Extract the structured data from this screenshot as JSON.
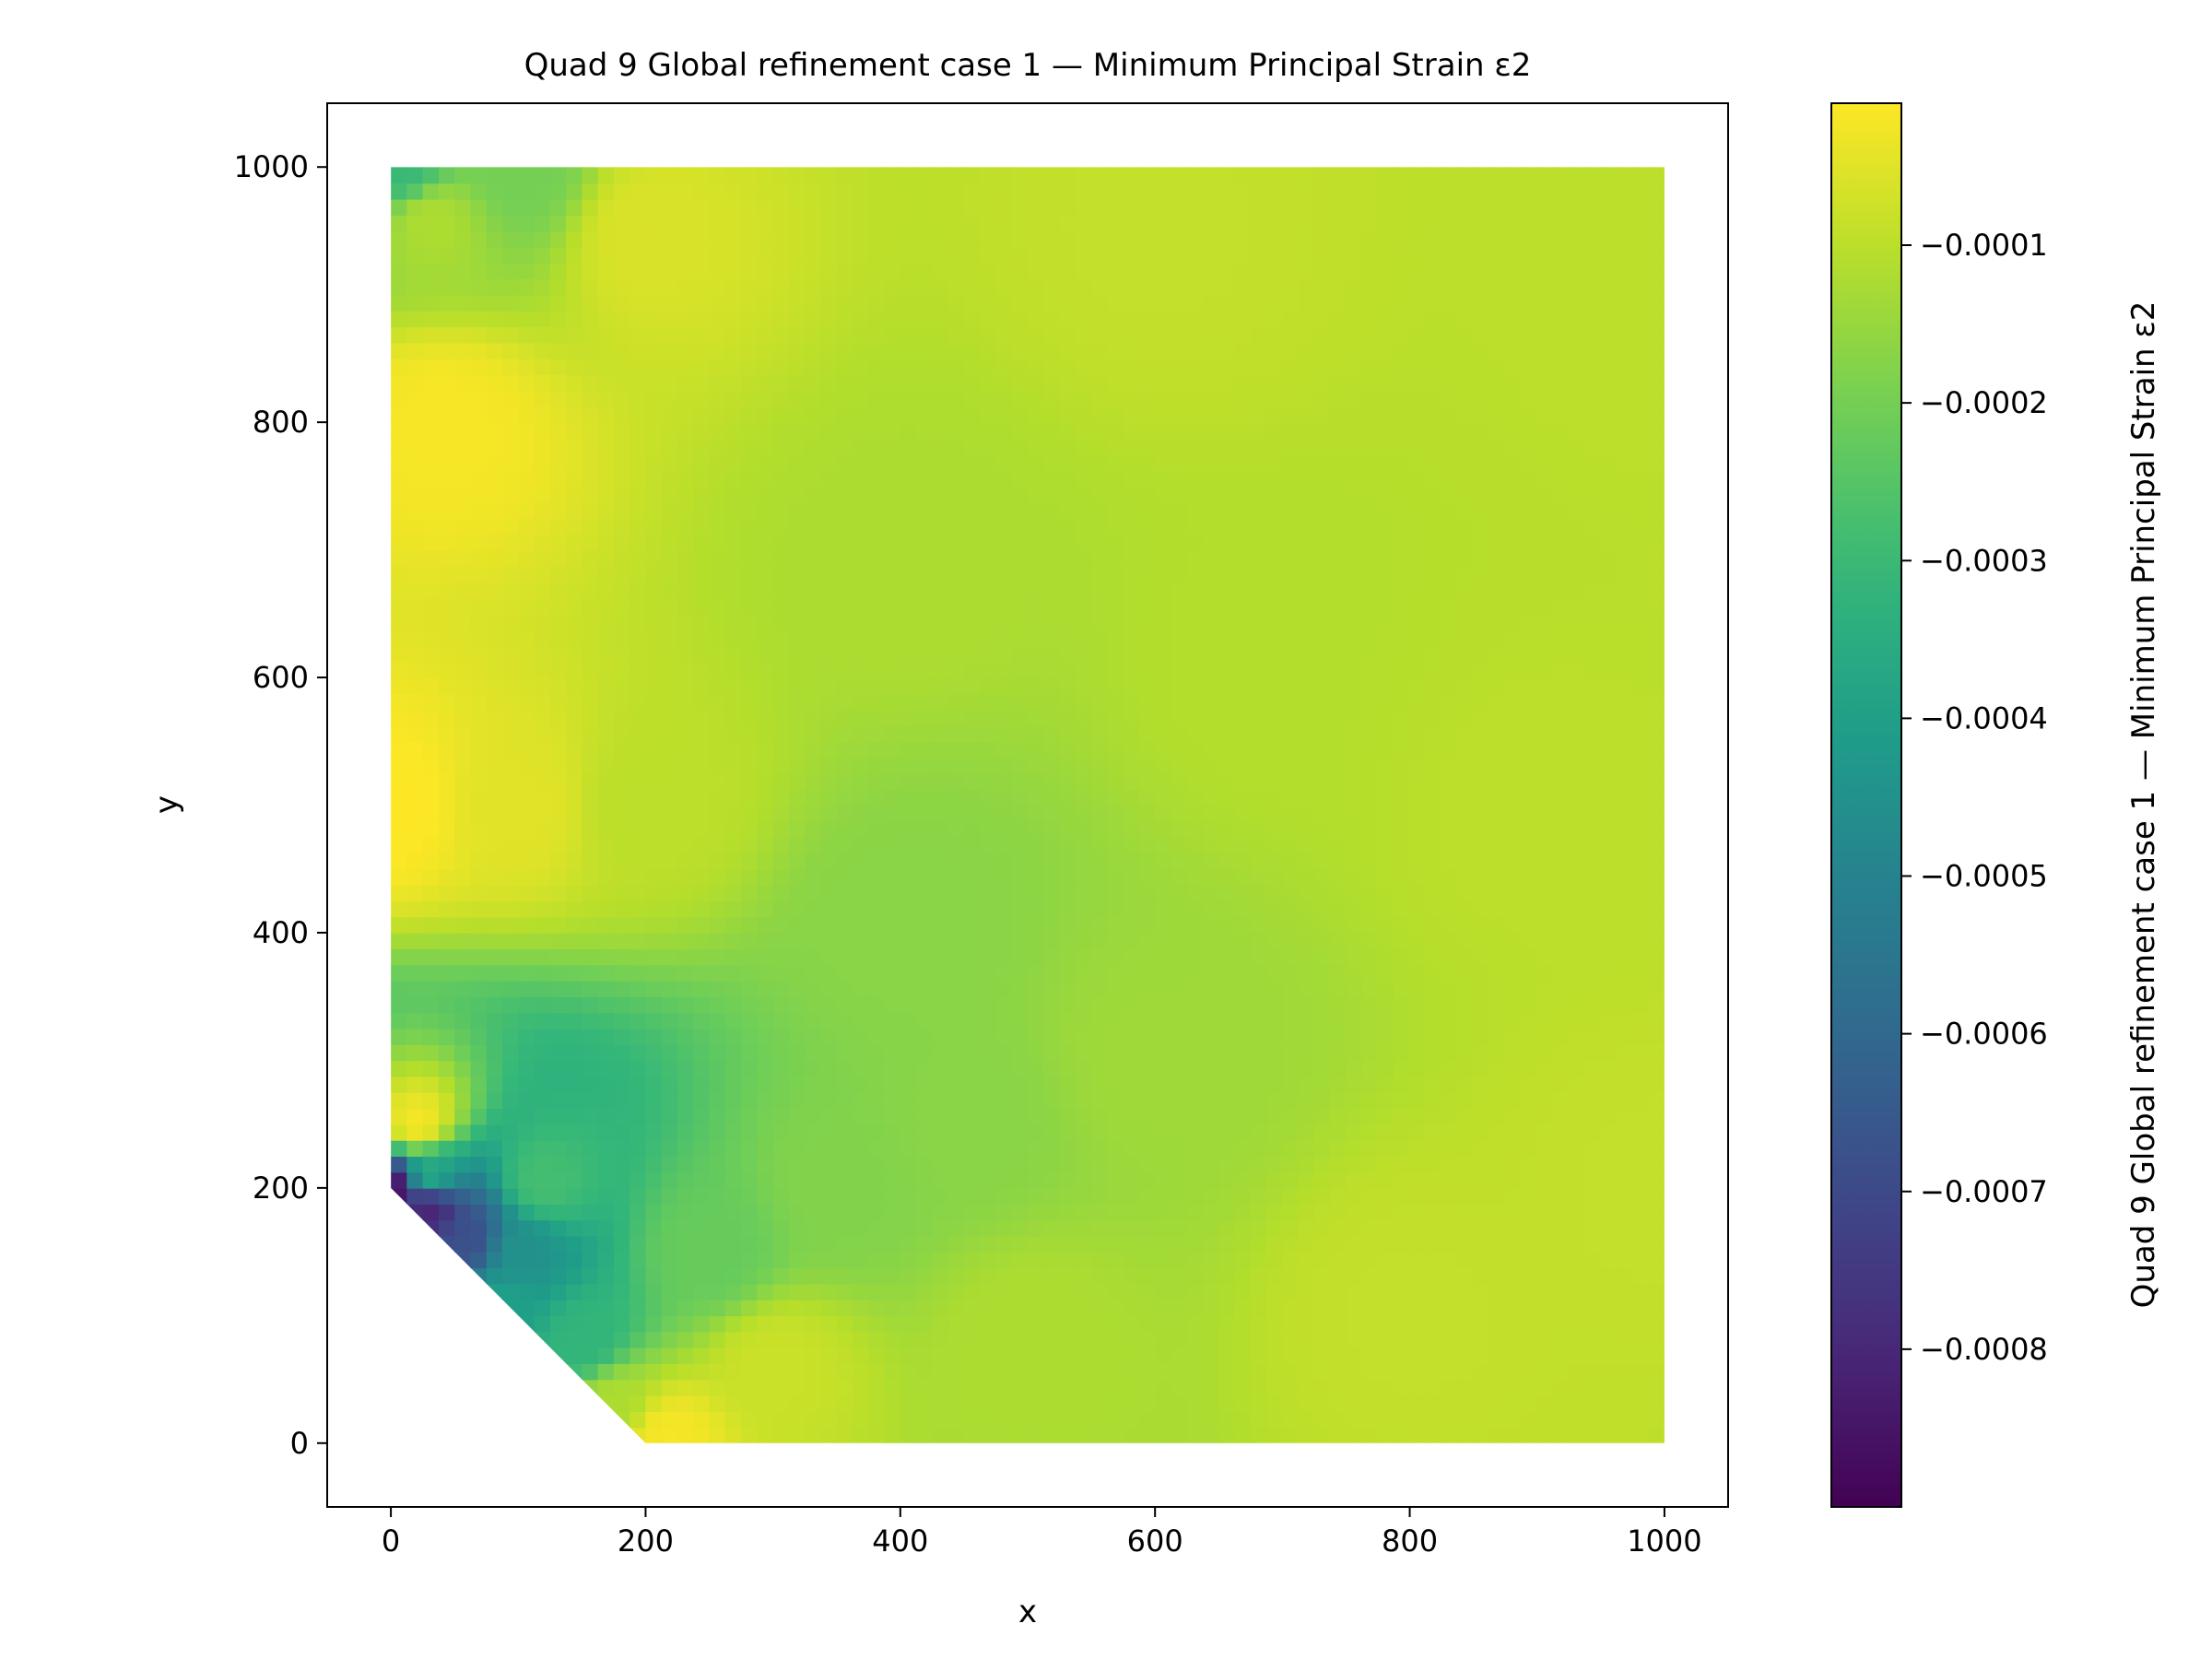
{
  "chart_data": {
    "type": "heatmap",
    "title": "Quad 9 Global refinement case 1 — Minimum Principal Strain ε2",
    "xlabel": "x",
    "ylabel": "y",
    "colorbar_label": "Quad 9 Global refinement case 1 — Minimum Principal Strain ε2",
    "xlim": [
      -50,
      1050
    ],
    "ylim": [
      -50,
      1050
    ],
    "xticks": [
      0,
      200,
      400,
      600,
      800,
      1000
    ],
    "yticks": [
      0,
      200,
      400,
      600,
      800,
      1000
    ],
    "colormap": "viridis",
    "color_range": [
      -0.0009,
      -1e-05
    ],
    "colorbar_ticks": [
      {
        "value": -0.0001,
        "label": "−0.0001"
      },
      {
        "value": -0.0002,
        "label": "−0.0002"
      },
      {
        "value": -0.0003,
        "label": "−0.0003"
      },
      {
        "value": -0.0004,
        "label": "−0.0004"
      },
      {
        "value": -0.0005,
        "label": "−0.0005"
      },
      {
        "value": -0.0006,
        "label": "−0.0006"
      },
      {
        "value": -0.0007,
        "label": "−0.0007"
      },
      {
        "value": -0.0008,
        "label": "−0.0008"
      }
    ],
    "domain_outline": [
      [
        0,
        1000
      ],
      [
        1000,
        1000
      ],
      [
        1000,
        0
      ],
      [
        200,
        0
      ],
      [
        0,
        200
      ]
    ],
    "strain_samples": [
      {
        "x": 0,
        "y": 200,
        "value": -0.00088
      },
      {
        "x": 30,
        "y": 185,
        "value": -0.00082
      },
      {
        "x": 60,
        "y": 160,
        "value": -0.00068
      },
      {
        "x": 100,
        "y": 150,
        "value": -0.00045
      },
      {
        "x": 90,
        "y": 110,
        "value": -0.0004
      },
      {
        "x": 150,
        "y": 80,
        "value": -0.00032
      },
      {
        "x": 175,
        "y": 30,
        "value": -0.00012
      },
      {
        "x": 215,
        "y": 5,
        "value": -2e-05
      },
      {
        "x": 30,
        "y": 210,
        "value": -0.00035
      },
      {
        "x": 120,
        "y": 205,
        "value": -0.00028
      },
      {
        "x": 250,
        "y": 150,
        "value": -0.00022
      },
      {
        "x": 350,
        "y": 200,
        "value": -0.00018
      },
      {
        "x": 300,
        "y": 60,
        "value": -8e-05
      },
      {
        "x": 500,
        "y": 80,
        "value": -0.00012
      },
      {
        "x": 0,
        "y": 500,
        "value": -1e-05
      },
      {
        "x": 20,
        "y": 250,
        "value": -2e-05
      },
      {
        "x": 40,
        "y": 800,
        "value": -2e-05
      },
      {
        "x": 100,
        "y": 500,
        "value": -5e-05
      },
      {
        "x": 200,
        "y": 500,
        "value": -0.0001
      },
      {
        "x": 400,
        "y": 400,
        "value": -0.00017
      },
      {
        "x": 450,
        "y": 250,
        "value": -0.00017
      },
      {
        "x": 600,
        "y": 300,
        "value": -0.00014
      },
      {
        "x": 400,
        "y": 700,
        "value": -0.00012
      },
      {
        "x": 700,
        "y": 600,
        "value": -0.00011
      },
      {
        "x": 900,
        "y": 500,
        "value": -0.0001
      },
      {
        "x": 1000,
        "y": 200,
        "value": -9e-05
      },
      {
        "x": 800,
        "y": 100,
        "value": -9e-05
      },
      {
        "x": 1000,
        "y": 900,
        "value": -0.0001
      },
      {
        "x": 600,
        "y": 950,
        "value": -9e-05
      },
      {
        "x": 200,
        "y": 950,
        "value": -6e-05
      },
      {
        "x": 30,
        "y": 960,
        "value": -0.00012
      },
      {
        "x": 10,
        "y": 998,
        "value": -0.0003
      },
      {
        "x": 100,
        "y": 998,
        "value": -0.0002
      }
    ]
  }
}
